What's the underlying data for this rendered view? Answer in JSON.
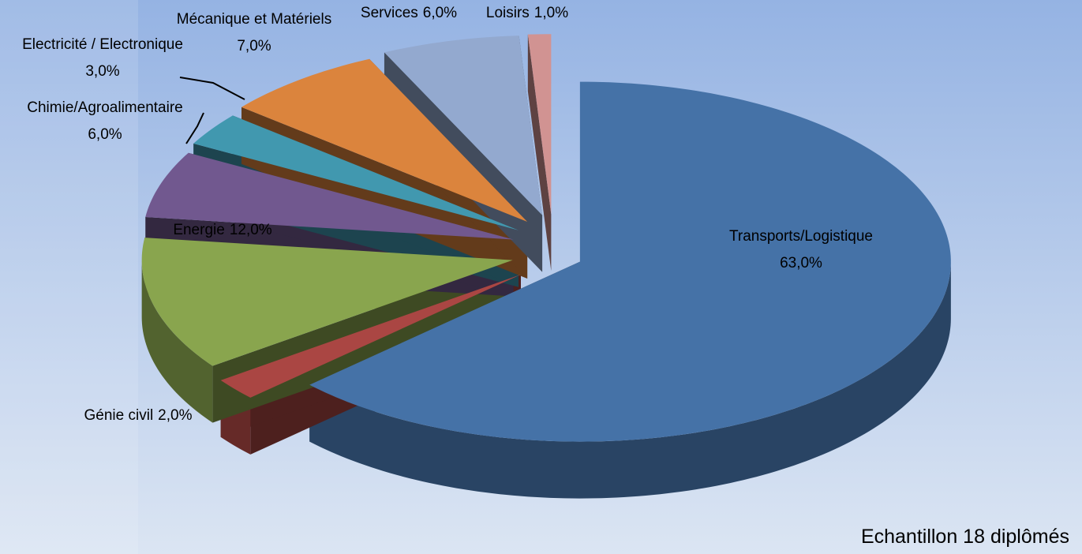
{
  "chart_data": {
    "type": "pie",
    "categories": [
      "Transports/Logistique",
      "Génie civil",
      "Energie",
      "Chimie/Agroalimentaire",
      "Electricité / Electronique",
      "Mécanique et Matériels",
      "Services",
      "Loisirs"
    ],
    "values": [
      63,
      2,
      12,
      6,
      3,
      7,
      6,
      1
    ],
    "value_labels": [
      "63,0%",
      "2,0%",
      "12,0%",
      "6,0%",
      "3,0%",
      "7,0%",
      "6,0%",
      "1,0%"
    ],
    "colors": [
      "#4572a7",
      "#aa4643",
      "#89a54e",
      "#71588f",
      "#4198af",
      "#db843d",
      "#93a9cf",
      "#d19392"
    ],
    "footnote": "Echantillon 18 diplômés"
  }
}
